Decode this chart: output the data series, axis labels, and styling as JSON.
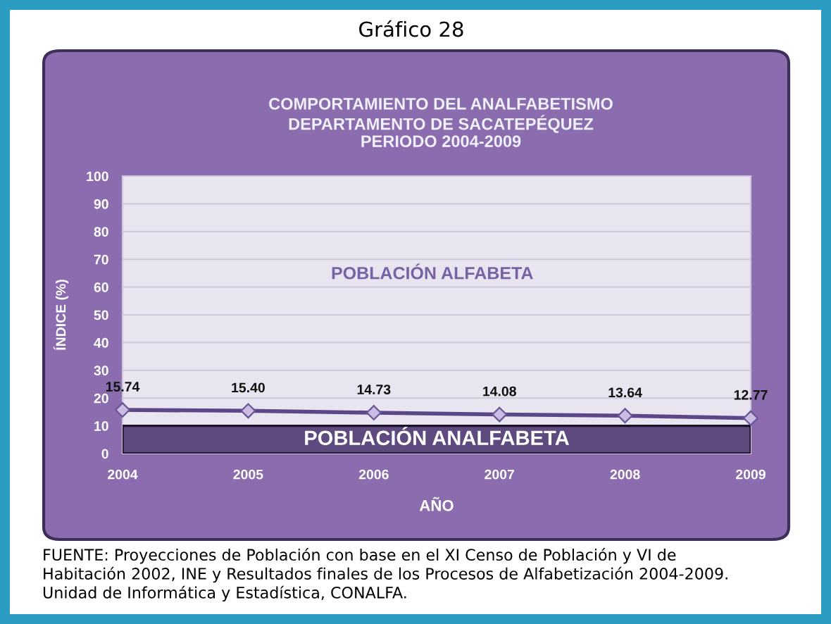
{
  "chart_data": {
    "type": "line",
    "title": "COMPORTAMIENTO DEL ANALFABETISMO\nDEPARTAMENTO DE SACATEPÉQUEZ\nPERIODO 2004-2009",
    "xlabel": "AÑO",
    "ylabel": "ÍNDICE (%)",
    "x": [
      2004,
      2005,
      2006,
      2007,
      2008,
      2009
    ],
    "series": [
      {
        "color": "#5b4788",
        "values": [
          15.74,
          15.4,
          14.73,
          14.08,
          13.64,
          12.77
        ],
        "value_labels": [
          "15.74",
          "15.40",
          "14.73",
          "14.08",
          "13.64",
          "12.77"
        ]
      }
    ],
    "xlim": [
      2004,
      2009
    ],
    "xticks": [
      2004,
      2005,
      2006,
      2007,
      2008,
      2009
    ],
    "ylim": [
      0,
      100
    ],
    "yticks": [
      0,
      10,
      20,
      30,
      40,
      50,
      60,
      70,
      80,
      90,
      100
    ],
    "bands": [
      {
        "axis": "y",
        "from": 0,
        "to": 10,
        "label": "POBLACIÓN ANALFABETA",
        "color": "#5f4a80"
      }
    ],
    "annotations": [
      "Gráfico 28",
      "POBLACIÓN ALFABETA",
      "FUENTE: Proyecciones de Población con base en el XI Censo de Población y VI de\nHabitación 2002, INE y Resultados finales de los Procesos de Alfabetización 2004-2009.\nUnidad de Informática y Estadística, CONALFA."
    ],
    "grid": "y",
    "legend": false,
    "marker": "diamond",
    "line_style": "solid"
  }
}
